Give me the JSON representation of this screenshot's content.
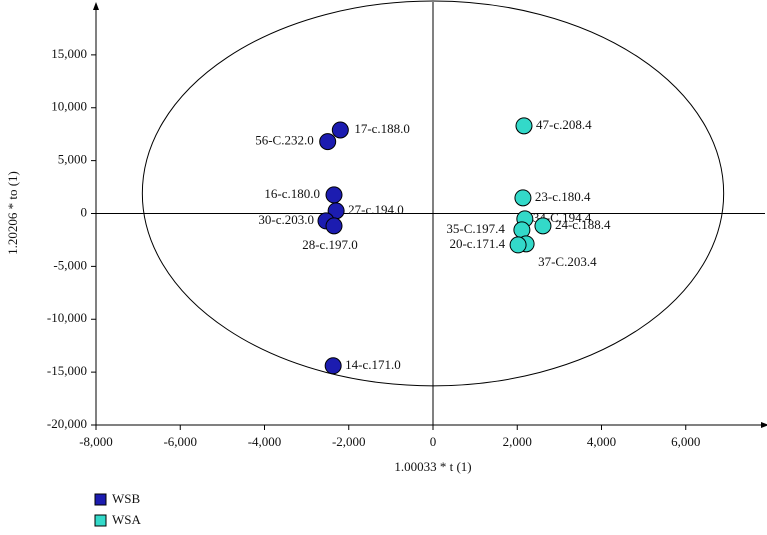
{
  "chart_data": {
    "type": "scatter",
    "x_label": "1.00033 * t (1)",
    "y_label": "1.20206 * to (1)",
    "xlim": [
      -8000,
      8000
    ],
    "ylim": [
      -20000,
      20000
    ],
    "xticks": [
      {
        "value": -8000,
        "label": "-8,000"
      },
      {
        "value": -6000,
        "label": "-6,000"
      },
      {
        "value": -4000,
        "label": "-4,000"
      },
      {
        "value": -2000,
        "label": "-2,000"
      },
      0,
      {
        "value": 2000,
        "label": "2,000"
      },
      {
        "value": 4000,
        "label": "4,000"
      },
      {
        "value": 6000,
        "label": "6,000"
      }
    ],
    "yticks": [
      {
        "value": -20000,
        "label": "-20,000"
      },
      {
        "value": -15000,
        "label": "-15,000"
      },
      {
        "value": -10000,
        "label": "-10,000"
      },
      {
        "value": -5000,
        "label": "-5,000"
      },
      0,
      {
        "value": 5000,
        "label": "5,000"
      },
      {
        "value": 10000,
        "label": "10,000"
      },
      {
        "value": 15000,
        "label": "15,000"
      }
    ],
    "ellipse": {
      "cx": 0,
      "cy": 1900,
      "rx": 6900,
      "ry": 18200
    },
    "series": [
      {
        "name": "WSB",
        "color": "#1c1cb0",
        "x": [
          -2200,
          -2500,
          -2350,
          -2300,
          -2540,
          -2350,
          -2370
        ],
        "values": [
          7900,
          6800,
          1760,
          250,
          -700,
          -1170,
          -14400
        ],
        "labels": [
          "17-c.188.0",
          "56-C.232.0",
          "16-c.180.0",
          "27-c.194.0",
          "30-c.203.0",
          "28-c.197.0",
          "14-c.171.0"
        ]
      },
      {
        "name": "WSA",
        "color": "#33d9c9",
        "x": [
          2160,
          2135,
          2180,
          2610,
          2110,
          2210,
          2020
        ],
        "values": [
          8290,
          1480,
          -510,
          -1170,
          -1550,
          -2870,
          -2970
        ],
        "labels": [
          "47-c.208.4",
          "23-c.180.4",
          "34-C.194.4",
          "24-c.188.4",
          "35-C.197.4",
          "37-C.203.4",
          "20-c.171.4"
        ]
      }
    ]
  }
}
